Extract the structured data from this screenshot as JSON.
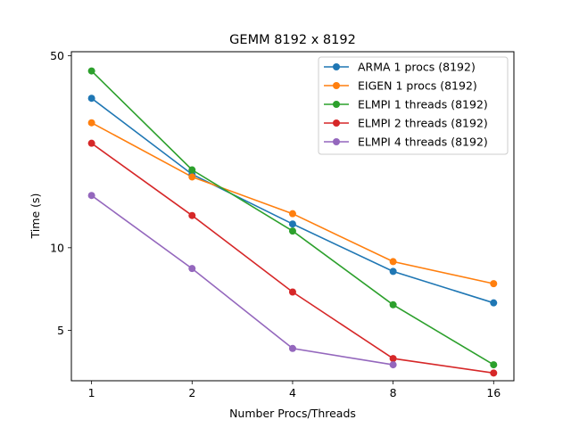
{
  "chart_data": {
    "type": "line",
    "title": "GEMM 8192 x 8192",
    "xlabel": "Number Procs/Threads",
    "ylabel": "Time (s)",
    "x_scale": "log2",
    "y_scale": "log",
    "x": [
      1,
      2,
      4,
      8,
      16
    ],
    "xticks": [
      "1",
      "2",
      "4",
      "8",
      "16"
    ],
    "yticks": [
      {
        "value": 5,
        "label": "5"
      },
      {
        "value": 10,
        "label": "10"
      },
      {
        "value": 50,
        "label": "50"
      }
    ],
    "xlim": [
      0.87,
      18.4
    ],
    "ylim": [
      3.28,
      51.7
    ],
    "grid": false,
    "legend_position": "top-right",
    "series": [
      {
        "name": "ARMA 1 procs (8192)",
        "color": "#1f77b4",
        "values": [
          35.0,
          18.5,
          12.2,
          8.2,
          6.3
        ]
      },
      {
        "name": "EIGEN 1 procs (8192)",
        "color": "#ff7f0e",
        "values": [
          28.5,
          18.1,
          13.3,
          8.9,
          7.4
        ]
      },
      {
        "name": "ELMPI 1 threads (8192)",
        "color": "#2ca02c",
        "values": [
          44.0,
          19.2,
          11.5,
          6.2,
          3.75
        ]
      },
      {
        "name": "ELMPI 2 threads (8192)",
        "color": "#d62728",
        "values": [
          24.0,
          13.1,
          6.9,
          3.95,
          3.5
        ]
      },
      {
        "name": "ELMPI 4 threads (8192)",
        "color": "#9467bd",
        "values": [
          15.5,
          8.4,
          4.3,
          3.75,
          null
        ]
      }
    ]
  }
}
